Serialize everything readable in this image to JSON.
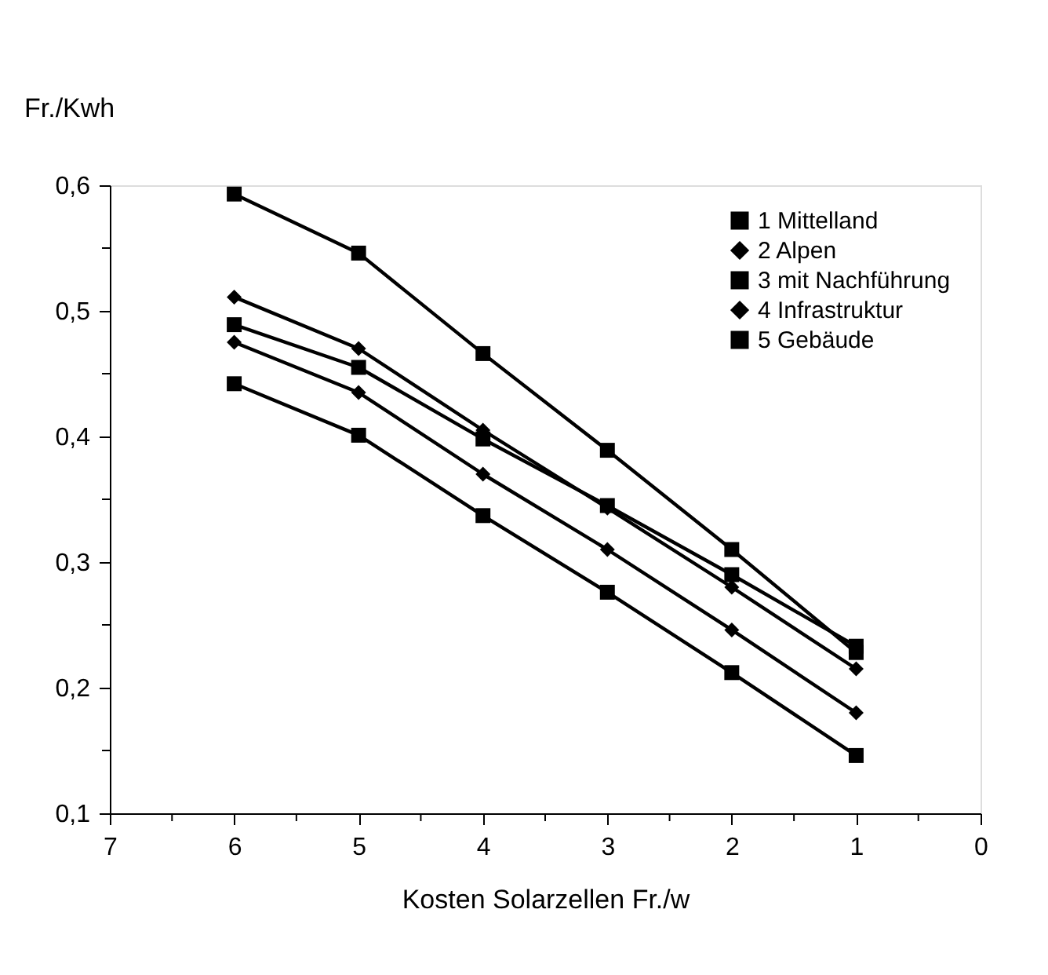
{
  "chart_data": {
    "type": "line",
    "xlabel": "Kosten Solarzellen Fr./w",
    "ylabel": "Fr./Kwh",
    "x": [
      6,
      5,
      4,
      3,
      2,
      1
    ],
    "series": [
      {
        "name": "1  Mittelland",
        "color": "#000000",
        "marker": "square",
        "values": [
          0.593,
          0.546,
          0.466,
          0.389,
          0.31,
          0.228
        ]
      },
      {
        "name": "2  Alpen",
        "color": "#000000",
        "marker": "diamond",
        "values": [
          0.511,
          0.47,
          0.405,
          0.343,
          0.28,
          0.215
        ]
      },
      {
        "name": "3  mit Nachführung",
        "color": "#000000",
        "marker": "square",
        "values": [
          0.489,
          0.455,
          0.398,
          0.345,
          0.29,
          0.233
        ]
      },
      {
        "name": "4  Infrastruktur",
        "color": "#000000",
        "marker": "diamond",
        "values": [
          0.475,
          0.435,
          0.37,
          0.31,
          0.246,
          0.18
        ]
      },
      {
        "name": "5  Gebäude",
        "color": "#000000",
        "marker": "square",
        "values": [
          0.442,
          0.401,
          0.337,
          0.276,
          0.212,
          0.146
        ]
      }
    ],
    "xlim": [
      7,
      0
    ],
    "xticks": [
      7,
      {
        "value": 6.5,
        "label": null
      },
      6,
      {
        "value": 5.5,
        "label": null
      },
      5,
      {
        "value": 4.5,
        "label": null
      },
      4,
      {
        "value": 3.5,
        "label": null
      },
      3,
      {
        "value": 2.5,
        "label": null
      },
      2,
      {
        "value": 1.5,
        "label": null
      },
      1,
      {
        "value": 0.5,
        "label": null
      },
      0
    ],
    "ylim": [
      0.1,
      0.6
    ],
    "yticks": [
      {
        "value": 0.1,
        "label": "0,1"
      },
      {
        "value": 0.15,
        "label": null
      },
      {
        "value": 0.2,
        "label": "0,2"
      },
      {
        "value": 0.25,
        "label": null
      },
      {
        "value": 0.3,
        "label": "0,3"
      },
      {
        "value": 0.35,
        "label": null
      },
      {
        "value": 0.4,
        "label": "0,4"
      },
      {
        "value": 0.45,
        "label": null
      },
      {
        "value": 0.5,
        "label": "0,5"
      },
      {
        "value": 0.55,
        "label": null
      },
      {
        "value": 0.6,
        "label": "0,6"
      }
    ],
    "grid": false,
    "legend": "top right",
    "line_style": "solid"
  }
}
